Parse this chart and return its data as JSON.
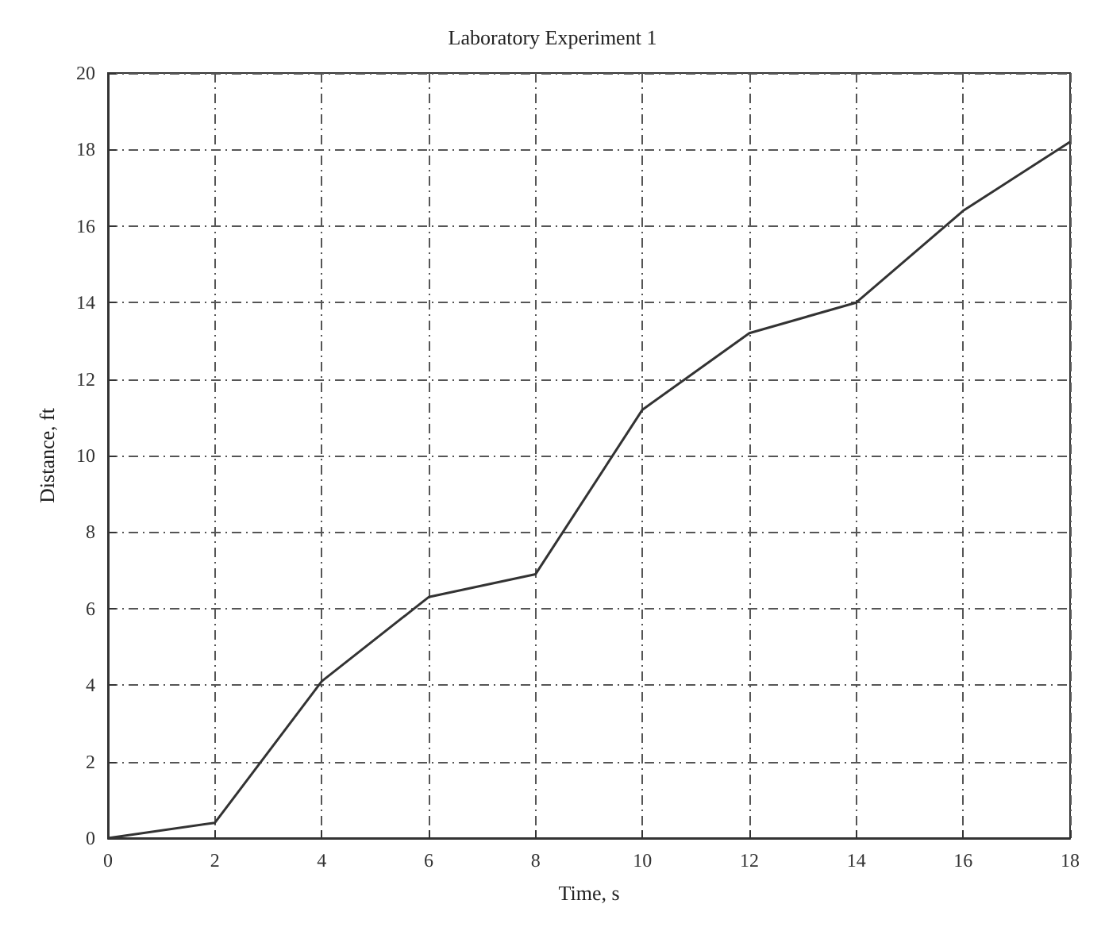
{
  "chart_data": {
    "type": "line",
    "title": "Laboratory Experiment 1",
    "xlabel": "Time, s",
    "ylabel": "Distance, ft",
    "x": [
      0,
      2,
      4,
      6,
      8,
      10,
      12,
      14,
      16,
      18
    ],
    "series": [
      {
        "color": "#333333",
        "values": [
          0,
          0.4,
          4.1,
          6.3,
          6.9,
          11.2,
          13.2,
          14.0,
          16.4,
          18.2
        ]
      }
    ],
    "xlim": [
      0,
      18
    ],
    "xticks": [
      0,
      2,
      4,
      6,
      8,
      10,
      12,
      14,
      16,
      18
    ],
    "ylim": [
      0,
      20
    ],
    "yticks": [
      0,
      2,
      4,
      6,
      8,
      10,
      12,
      14,
      16,
      18,
      20
    ],
    "grid": true,
    "marker": "none",
    "line_style": "solid"
  }
}
